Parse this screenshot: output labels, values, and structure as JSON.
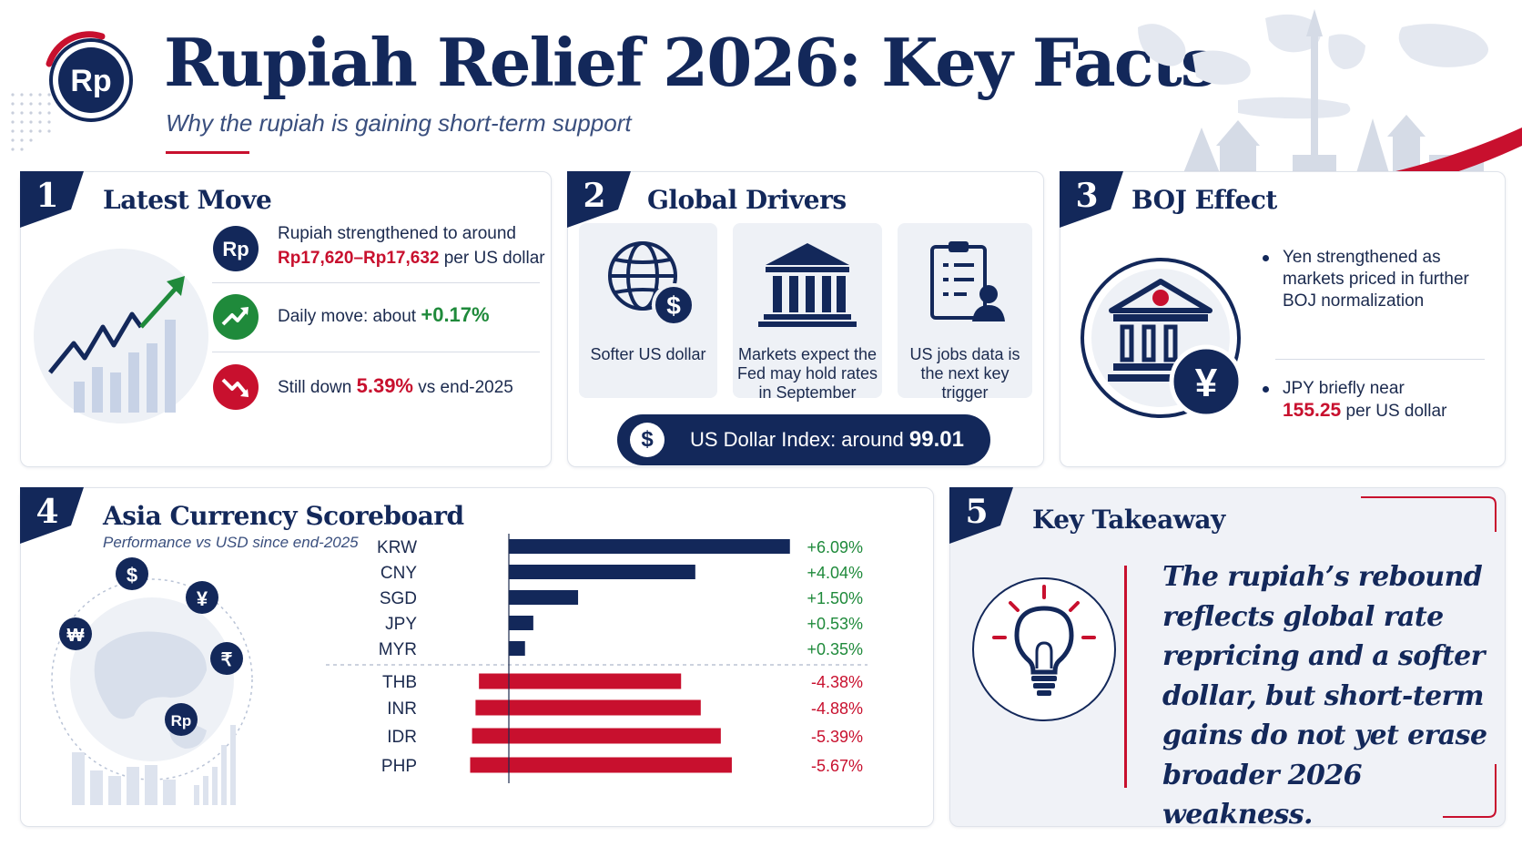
{
  "header": {
    "logo_text": "Rp",
    "title": "Rupiah Relief 2026: Key Facts",
    "subtitle": "Why the rupiah is gaining short-term support"
  },
  "colors": {
    "navy": "#13285a",
    "red": "#c8102e",
    "green": "#1f8a3b",
    "panel_bg": "#f0f2f7"
  },
  "panels": {
    "latest_move": {
      "number": "1",
      "title": "Latest Move",
      "facts": [
        {
          "icon": "rupiah-coin-icon",
          "text_pre": "Rupiah strengthened to around",
          "highlight": "Rp17,620–Rp17,632",
          "text_post": "per US dollar"
        },
        {
          "icon": "trend-up-icon",
          "text_pre": "Daily move: about",
          "highlight": "+0.17%",
          "text_post": ""
        },
        {
          "icon": "trend-down-icon",
          "text_pre": "Still down",
          "highlight": "5.39%",
          "text_post": "vs end-2025"
        }
      ]
    },
    "global_drivers": {
      "number": "2",
      "title": "Global Drivers",
      "drivers": [
        {
          "icon": "globe-dollar-icon",
          "label": "Softer US dollar"
        },
        {
          "icon": "bank-building-icon",
          "label": "Markets expect the Fed may hold rates in September"
        },
        {
          "icon": "clipboard-person-icon",
          "label": "US jobs data is the next key trigger"
        }
      ],
      "dxy_symbol": "$",
      "dxy_text": "US Dollar Index: around",
      "dxy_value": "99.01"
    },
    "boj_effect": {
      "number": "3",
      "title": "BOJ Effect",
      "bullets": [
        {
          "text_pre": "Yen strengthened as markets priced in further BOJ normalization",
          "highlight": "",
          "text_post": ""
        },
        {
          "text_pre": "JPY briefly near",
          "highlight": "155.25",
          "text_post": "per US dollar"
        }
      ],
      "yen_symbol": "¥"
    },
    "scoreboard": {
      "number": "4",
      "title": "Asia Currency Scoreboard",
      "subtitle": "Performance vs USD since end-2025",
      "globe_symbols": [
        "$",
        "¥",
        "₩",
        "₹",
        "Rp"
      ]
    },
    "takeaway": {
      "number": "5",
      "title": "Key Takeaway",
      "text": "The rupiah’s rebound reflects global rate repricing and a softer dollar, but short-term gains do not yet erase broader 2026 weakness."
    }
  },
  "chart_data": {
    "type": "bar",
    "orientation": "horizontal",
    "title": "Asia Currency Scoreboard",
    "subtitle": "Performance vs USD since end-2025",
    "categories": [
      "KRW",
      "CNY",
      "SGD",
      "JPY",
      "MYR",
      "THB",
      "INR",
      "IDR",
      "PHP"
    ],
    "values": [
      6.09,
      4.04,
      1.5,
      0.53,
      0.35,
      -4.38,
      -4.88,
      -5.39,
      -5.67
    ],
    "value_labels": [
      "+6.09%",
      "+4.04%",
      "+1.50%",
      "+0.53%",
      "+0.35%",
      "-4.38%",
      "-4.88%",
      "-5.39%",
      "-5.67%"
    ],
    "positive_color": "#13285a",
    "negative_color": "#c8102e",
    "xlim": [
      -6,
      7
    ],
    "grid": false
  }
}
